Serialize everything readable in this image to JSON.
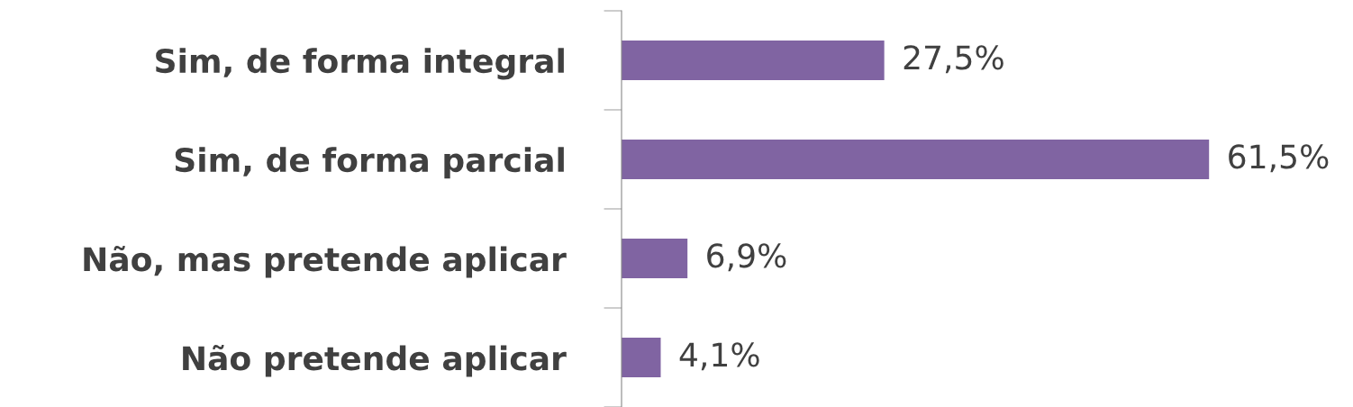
{
  "chart_data": {
    "type": "bar",
    "orientation": "horizontal",
    "categories": [
      "Sim, de forma integral",
      "Sim, de forma parcial",
      "Não, mas pretende aplicar",
      "Não pretende aplicar"
    ],
    "values": [
      27.5,
      61.5,
      6.9,
      4.1
    ],
    "value_labels": [
      "27,5%",
      "61,5%",
      "6,9%",
      "4,1%"
    ],
    "color": "#8064a2",
    "tick_labels": "y",
    "grid": false,
    "legend": false
  }
}
